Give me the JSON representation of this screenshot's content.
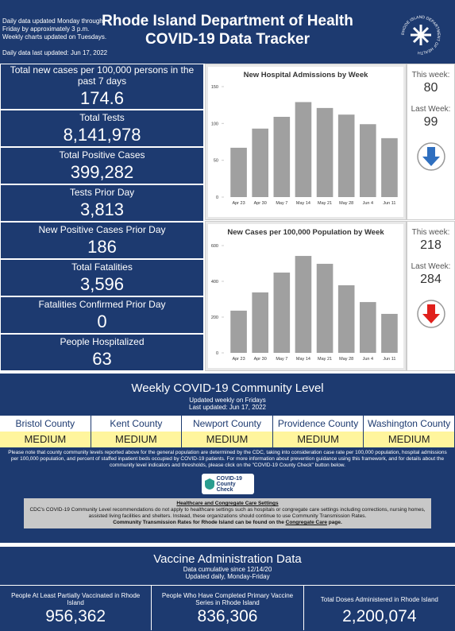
{
  "header": {
    "notes": [
      "Daily data updated Monday through",
      "Friday by approximately 3 p.m.",
      "Weekly charts updated on Tuesdays."
    ],
    "last_updated": "Daily data last updated: Jun 17, 2022",
    "title_line1": "Rhode Island Department of Health",
    "title_line2": "COVID-19 Data Tracker",
    "logo_text": "RHODE ISLAND DEPARTMENT OF HEALTH"
  },
  "stats": [
    {
      "label": "Total new cases per 100,000 persons in the past 7 days",
      "value": "174.6"
    },
    {
      "label": "Total Tests",
      "value": "8,141,978"
    },
    {
      "label": "Total Positive Cases",
      "value": "399,282"
    },
    {
      "label": "Tests Prior Day",
      "value": "3,813"
    },
    {
      "label": "New Positive Cases Prior Day",
      "value": "186"
    },
    {
      "label": "Total Fatalities",
      "value": "3,596"
    },
    {
      "label": "Fatalities Confirmed Prior Day",
      "value": "0"
    },
    {
      "label": "People Hospitalized",
      "value": "63"
    }
  ],
  "charts": [
    {
      "type": "bar",
      "title": "New Hospital Admissions by Week",
      "categories": [
        "Apr 23",
        "Apr 30",
        "May 7",
        "May 14",
        "May 21",
        "May 28",
        "Jun 4",
        "Jun 11"
      ],
      "values": [
        67,
        93,
        109,
        129,
        121,
        112,
        99,
        80
      ],
      "color": "#a0a0a0",
      "ylim": [
        0,
        150
      ],
      "yticks": [
        0,
        50,
        100,
        150
      ],
      "this_week_label": "This week:",
      "this_week": 80,
      "last_week_label": "Last Week:",
      "last_week": 99,
      "arrow_color": "#2f6fbf"
    },
    {
      "type": "bar",
      "title": "New Cases per 100,000 Population by Week",
      "categories": [
        "Apr 23",
        "Apr 30",
        "May 7",
        "May 14",
        "May 21",
        "May 28",
        "Jun 4",
        "Jun 11"
      ],
      "values": [
        236,
        338,
        449,
        542,
        498,
        378,
        284,
        218
      ],
      "color": "#a0a0a0",
      "ylim": [
        0,
        600
      ],
      "yticks": [
        0,
        200,
        400,
        600
      ],
      "this_week_label": "This week:",
      "this_week": 218,
      "last_week_label": "Last Week:",
      "last_week": 284,
      "arrow_color": "#e0201c"
    }
  ],
  "community": {
    "title": "Weekly COVID-19 Community Level",
    "subtitle": "Updated weekly on Fridays",
    "updated": "Last updated: Jun 17, 2022",
    "counties": [
      {
        "name": "Bristol County",
        "level": "MEDIUM"
      },
      {
        "name": "Kent County",
        "level": "MEDIUM"
      },
      {
        "name": "Newport County",
        "level": "MEDIUM"
      },
      {
        "name": "Providence County",
        "level": "MEDIUM"
      },
      {
        "name": "Washington County",
        "level": "MEDIUM"
      }
    ],
    "note": "Please note that county community levels reported above for the general population are determined by the CDC, taking into consideration case rate per 100,000 population, hospital admissions per 100,000 population, and percent of staffed inpatient beds occupied by COVID-19 patients. For more information about prevention guidance using this framework, and for details about the community level indicators and thresholds, please click on the \"COVID-19 County Check\" button below.",
    "button_line1": "COVID-19",
    "button_line2": "County Check",
    "box_title": "Healthcare and Congregate Care Settings",
    "box_text": "CDC's COVID-19 Community Level recommendations do not apply to healthcare settings such as hospitals or congregate care settings including corrections, nursing homes, assisted living facilities and shelters. Instead, these organizations should continue to use Community Transmission Rates.",
    "box_bold": "Community Transmission Rates for Rhode Island can be found on the ",
    "box_link": "Congregate Care",
    "box_end": " page."
  },
  "vaccine": {
    "title": "Vaccine Administration Data",
    "subtitle1": "Data cumulative since 12/14/20",
    "subtitle2": "Updated daily, Monday-Friday",
    "stats": [
      {
        "label": "People At Least Partially Vaccinated in Rhode Island",
        "value": "956,362"
      },
      {
        "label": "People Who Have Completed Primary Vaccine Series in Rhode Island",
        "value": "836,306"
      },
      {
        "label": "Total Doses Administered in Rhode Island",
        "value": "2,200,074"
      }
    ]
  }
}
